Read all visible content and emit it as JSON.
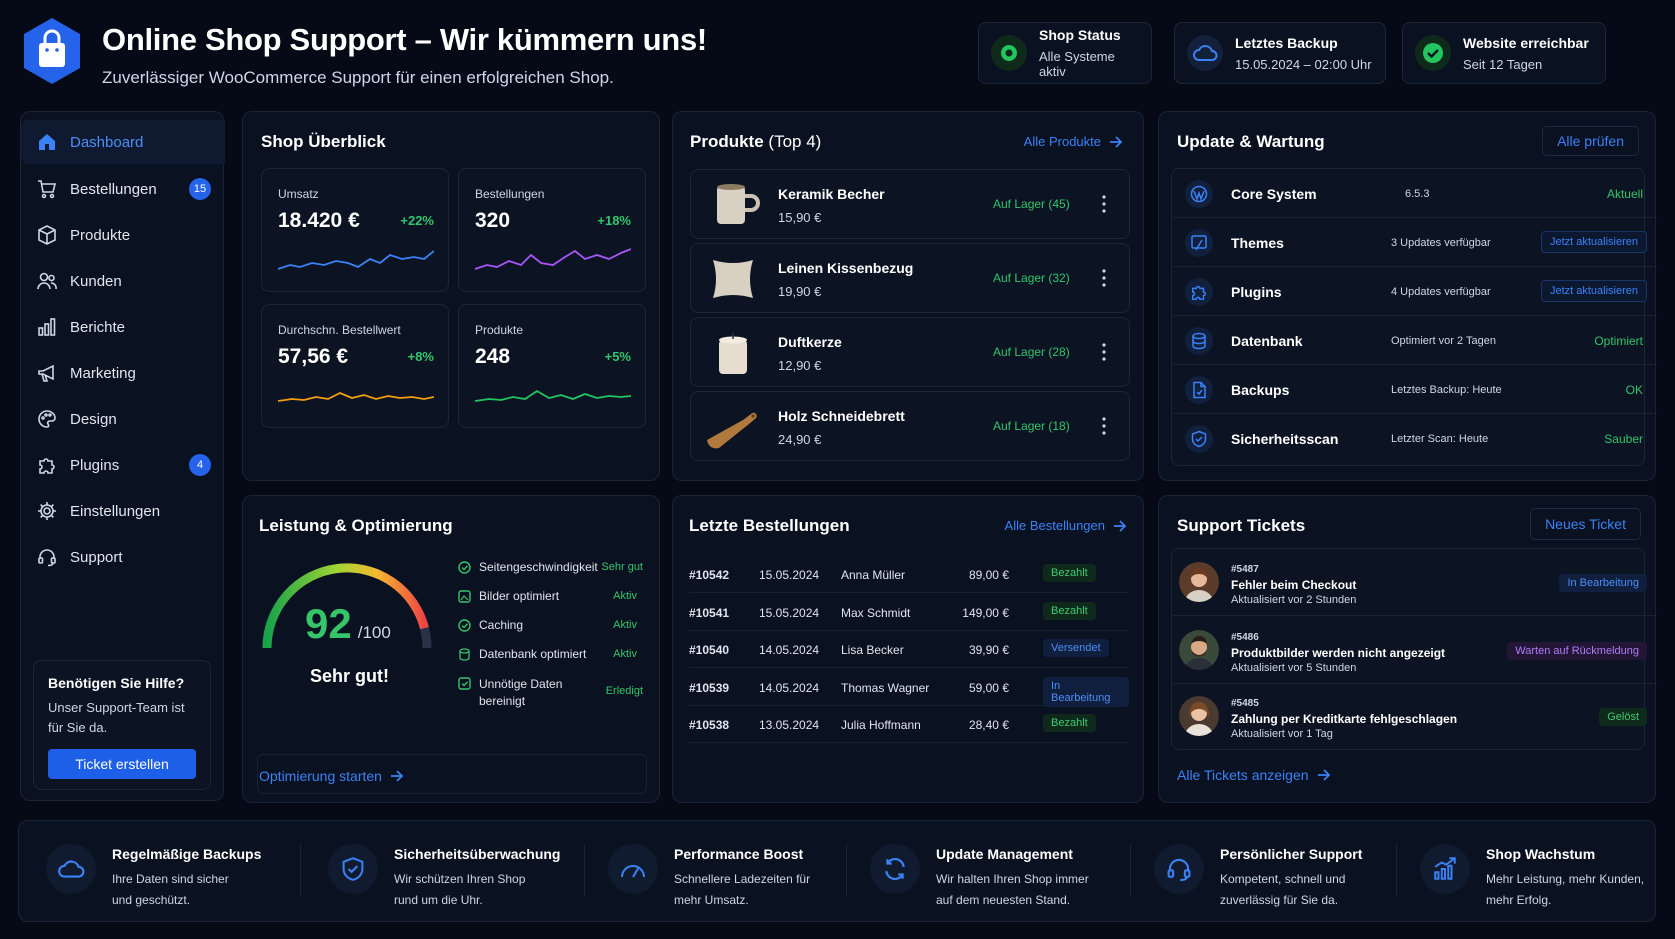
{
  "header": {
    "title": "Online Shop Support – Wir kümmern uns!",
    "subtitle": "Zuverlässiger WooCommerce Support für einen erfolgreichen Shop.",
    "status": [
      {
        "title": "Shop Status",
        "value": "Alle Systeme aktiv",
        "icon": "dot-icon"
      },
      {
        "title": "Letztes Backup",
        "value": "15.05.2024 – 02:00 Uhr",
        "icon": "cloud-icon"
      },
      {
        "title": "Website erreichbar",
        "value": "Seit 12 Tagen",
        "icon": "check-icon"
      }
    ]
  },
  "sidebar": {
    "items": [
      {
        "label": "Dashboard",
        "icon": "home-icon"
      },
      {
        "label": "Bestellungen",
        "icon": "cart-icon",
        "badge": "15"
      },
      {
        "label": "Produkte",
        "icon": "box-icon"
      },
      {
        "label": "Kunden",
        "icon": "users-icon"
      },
      {
        "label": "Berichte",
        "icon": "bar-chart-icon"
      },
      {
        "label": "Marketing",
        "icon": "megaphone-icon"
      },
      {
        "label": "Design",
        "icon": "palette-icon"
      },
      {
        "label": "Plugins",
        "icon": "puzzle-icon",
        "badge": "4"
      },
      {
        "label": "Einstellungen",
        "icon": "gear-icon"
      },
      {
        "label": "Support",
        "icon": "headset-icon"
      }
    ],
    "help": {
      "title": "Benötigen Sie Hilfe?",
      "text": "Unser Support-Team ist für Sie da.",
      "button": "Ticket erstellen"
    }
  },
  "overview": {
    "title": "Shop Überblick",
    "metrics": [
      {
        "label": "Umsatz",
        "value": "18.420 €",
        "change": "+22%",
        "color": "#3b82f6"
      },
      {
        "label": "Bestellungen",
        "value": "320",
        "change": "+18%",
        "color": "#a855f7"
      },
      {
        "label": "Durchschn. Bestellwert",
        "value": "57,56 €",
        "change": "+8%",
        "color": "#f59e0b"
      },
      {
        "label": "Produkte",
        "value": "248",
        "change": "+5%",
        "color": "#22c55e"
      }
    ]
  },
  "products": {
    "title": "Produkte",
    "title_suffix": "(Top 4)",
    "link": "Alle Produkte",
    "items": [
      {
        "name": "Keramik Becher",
        "price": "15,90 €",
        "stock": "Auf Lager (45)"
      },
      {
        "name": "Leinen Kissenbezug",
        "price": "19,90 €",
        "stock": "Auf Lager (32)"
      },
      {
        "name": "Duftkerze",
        "price": "12,90 €",
        "stock": "Auf Lager (28)"
      },
      {
        "name": "Holz Schneidebrett",
        "price": "24,90 €",
        "stock": "Auf Lager (18)"
      }
    ]
  },
  "updates": {
    "title": "Update & Wartung",
    "button": "Alle prüfen",
    "items": [
      {
        "name": "Core System",
        "info": "6.5.3",
        "status": "Aktuell",
        "icon": "wordpress-icon"
      },
      {
        "name": "Themes",
        "info": "3 Updates verfügbar",
        "action": "Jetzt aktualisieren",
        "icon": "brush-icon"
      },
      {
        "name": "Plugins",
        "info": "4 Updates verfügbar",
        "action": "Jetzt aktualisieren",
        "icon": "puzzle-icon"
      },
      {
        "name": "Datenbank",
        "info": "Optimiert vor 2 Tagen",
        "status": "Optimiert",
        "icon": "database-icon"
      },
      {
        "name": "Backups",
        "info": "Letztes Backup: Heute",
        "status": "OK",
        "icon": "file-icon"
      },
      {
        "name": "Sicherheitsscan",
        "info": "Letzter Scan: Heute",
        "status": "Sauber",
        "icon": "shield-icon"
      }
    ]
  },
  "performance": {
    "title": "Leistung & Optimierung",
    "score": "92",
    "score_max": "/100",
    "score_fraction": 0.92,
    "rating": "Sehr gut!",
    "link": "Optimierung starten",
    "checks": [
      {
        "label": "Seitengeschwindigkeit",
        "status": "Sehr gut"
      },
      {
        "label": "Bilder optimiert",
        "status": "Aktiv"
      },
      {
        "label": "Caching",
        "status": "Aktiv"
      },
      {
        "label": "Datenbank optimiert",
        "status": "Aktiv"
      },
      {
        "label": "Unnötige Daten",
        "label2": "bereinigt",
        "status": "Erledigt"
      }
    ]
  },
  "orders": {
    "title": "Letzte Bestellungen",
    "link": "Alle Bestellungen",
    "rows": [
      {
        "id": "#10542",
        "date": "15.05.2024",
        "name": "Anna Müller",
        "amount": "89,00 €",
        "status": "Bezahlt"
      },
      {
        "id": "#10541",
        "date": "15.05.2024",
        "name": "Max Schmidt",
        "amount": "149,00 €",
        "status": "Bezahlt"
      },
      {
        "id": "#10540",
        "date": "14.05.2024",
        "name": "Lisa Becker",
        "amount": "39,90 €",
        "status": "Versendet"
      },
      {
        "id": "#10539",
        "date": "14.05.2024",
        "name": "Thomas Wagner",
        "amount": "59,00 €",
        "status": "In Bearbeitung"
      },
      {
        "id": "#10538",
        "date": "13.05.2024",
        "name": "Julia Hoffmann",
        "amount": "28,40 €",
        "status": "Bezahlt"
      }
    ]
  },
  "tickets": {
    "title": "Support Tickets",
    "button": "Neues Ticket",
    "link": "Alle Tickets anzeigen",
    "items": [
      {
        "id": "#5487",
        "title": "Fehler beim Checkout",
        "updated": "Aktualisiert vor 2 Stunden",
        "status": "In Bearbeitung"
      },
      {
        "id": "#5486",
        "title": "Produktbilder werden nicht angezeigt",
        "updated": "Aktualisiert vor 5 Stunden",
        "status": "Warten auf Rückmeldung"
      },
      {
        "id": "#5485",
        "title": "Zahlung per Kreditkarte fehlgeschlagen",
        "updated": "Aktualisiert vor 1 Tag",
        "status": "Gelöst"
      }
    ]
  },
  "features": [
    {
      "title": "Regelmäßige Backups",
      "l1": "Ihre Daten sind sicher",
      "l2": "und geschützt.",
      "icon": "cloud-icon"
    },
    {
      "title": "Sicherheitsüberwachung",
      "l1": "Wir schützen Ihren Shop",
      "l2": "rund um die Uhr.",
      "icon": "shield-icon"
    },
    {
      "title": "Performance Boost",
      "l1": "Schnellere Ladezeiten für",
      "l2": "mehr Umsatz.",
      "icon": "speedometer-icon"
    },
    {
      "title": "Update Management",
      "l1": "Wir halten Ihren Shop immer",
      "l2": "auf dem neuesten Stand.",
      "icon": "refresh-icon"
    },
    {
      "title": "Persönlicher Support",
      "l1": "Kompetent, schnell und",
      "l2": "zuverlässig für Sie da.",
      "icon": "headset-icon"
    },
    {
      "title": "Shop Wachstum",
      "l1": "Mehr Leistung, mehr Kunden,",
      "l2": "mehr Erfolg.",
      "icon": "growth-chart-icon"
    }
  ],
  "colors": {
    "accent": "#3b82f6",
    "success": "#35c46a",
    "background": "#050a16"
  }
}
